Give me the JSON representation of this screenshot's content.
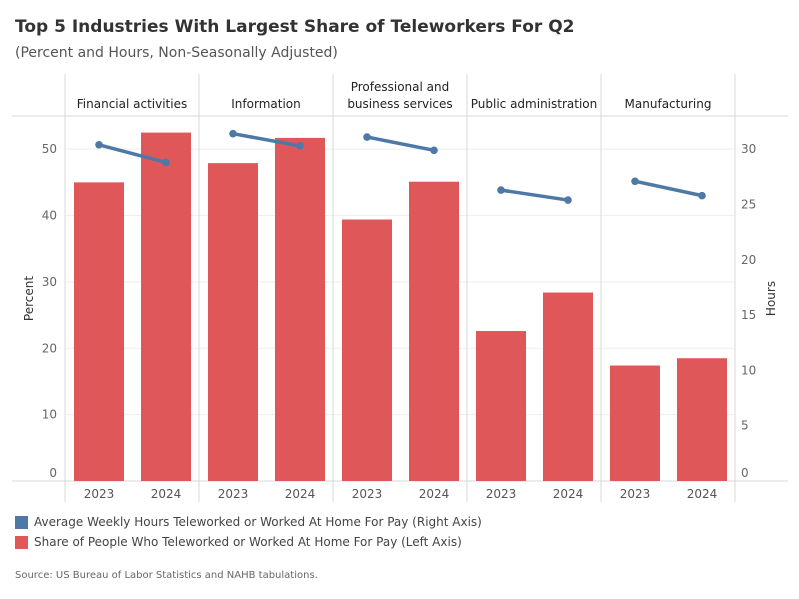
{
  "title": "Top 5 Industries With Largest Share of Teleworkers For Q2",
  "subtitle": "(Percent and Hours, Non-Seasonally Adjusted)",
  "source": "Source: US Bureau of Labor Statistics and NAHB tabulations.",
  "colors": {
    "bar": "#e05759",
    "line": "#4e79a7"
  },
  "chart_data": {
    "type": "bar",
    "panels": [
      {
        "name": "Financial activities",
        "name_lines": [
          "Financial activities"
        ]
      },
      {
        "name": "Information",
        "name_lines": [
          "Information"
        ]
      },
      {
        "name": "Professional and business services",
        "name_lines": [
          "Professional and",
          "business services"
        ]
      },
      {
        "name": "Public administration",
        "name_lines": [
          "Public administration"
        ]
      },
      {
        "name": "Manufacturing",
        "name_lines": [
          "Manufacturing"
        ]
      }
    ],
    "categories": [
      "2023",
      "2024"
    ],
    "series": [
      {
        "name": "Share of People Who Teleworked or Worked At Home For Pay (Left Axis)",
        "type": "bar",
        "axis": "left",
        "values": [
          [
            45.0,
            52.5
          ],
          [
            47.9,
            51.7
          ],
          [
            39.4,
            45.1
          ],
          [
            22.6,
            28.4
          ],
          [
            17.4,
            18.5
          ]
        ]
      },
      {
        "name": "Average Weekly Hours Teleworked or Worked At Home For Pay (Right Axis)",
        "type": "line",
        "axis": "right",
        "values": [
          [
            30.4,
            28.8
          ],
          [
            31.4,
            30.3
          ],
          [
            31.1,
            29.9
          ],
          [
            26.3,
            25.4
          ],
          [
            27.1,
            25.8
          ]
        ]
      }
    ],
    "ylabel": "Percent",
    "ylabel_right": "Hours",
    "ylim": [
      0,
      55
    ],
    "ylim_right": [
      0,
      33
    ],
    "yticks": [
      0,
      10,
      20,
      30,
      40,
      50
    ],
    "yticks_right": [
      0,
      5,
      10,
      15,
      20,
      25,
      30
    ],
    "legend_order": [
      1,
      0
    ],
    "legend_position": "bottom-left",
    "grid": true
  }
}
